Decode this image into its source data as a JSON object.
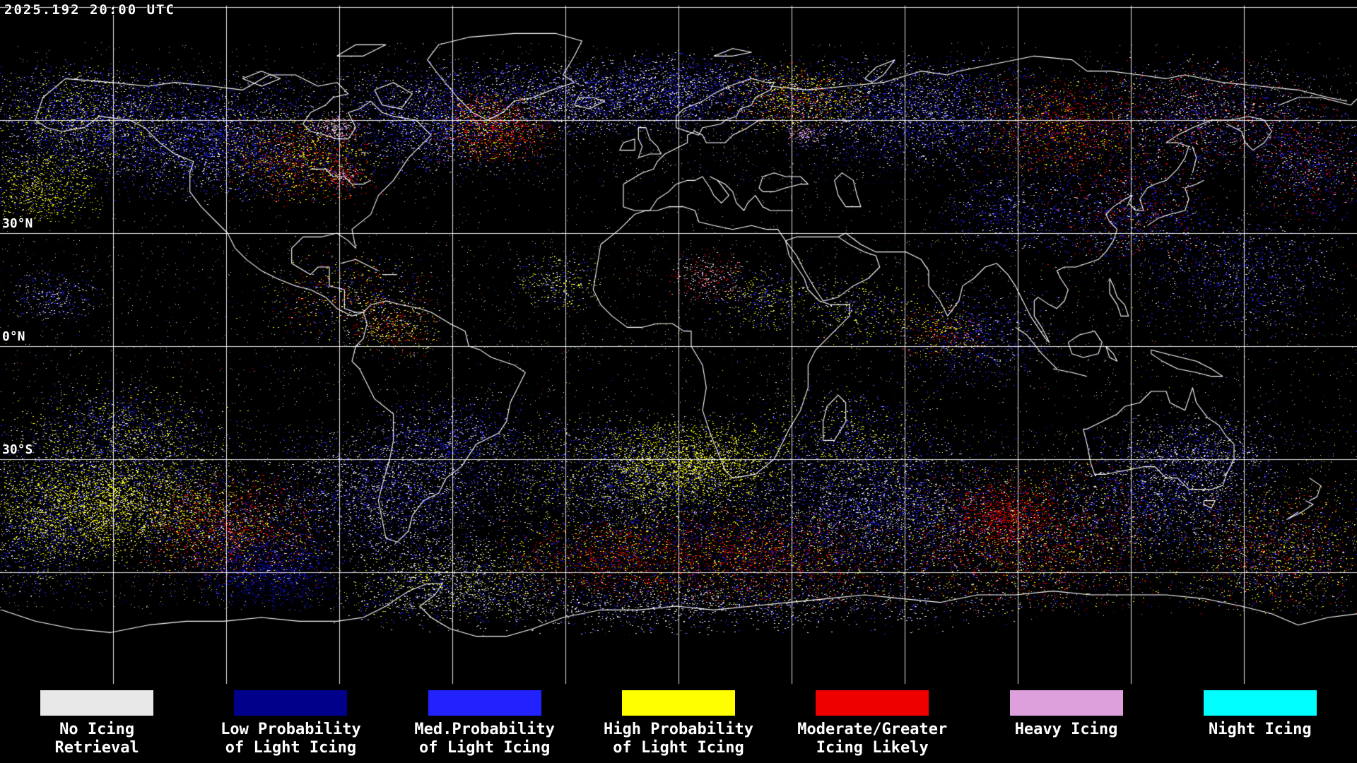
{
  "header": {
    "timestamp": "2025.192 20:00 UTC"
  },
  "map": {
    "lat_labels": [
      "30°N",
      "0°N",
      "30°S"
    ],
    "background_color": "#000000",
    "coastline_color": "#ffffff",
    "grid_color": "#ffffff"
  },
  "legend": {
    "items": [
      {
        "line1": "No Icing",
        "line2": "Retrieval",
        "color": "#e8e8e8"
      },
      {
        "line1": "Low Probability",
        "line2": "of Light Icing",
        "color": "#00008b"
      },
      {
        "line1": "Med.Probability",
        "line2": "of Light Icing",
        "color": "#2222ff"
      },
      {
        "line1": "High Probability",
        "line2": "of Light Icing",
        "color": "#ffff00"
      },
      {
        "line1": "Moderate/Greater",
        "line2": "Icing Likely",
        "color": "#ee0000"
      },
      {
        "line1": "Heavy Icing",
        "line2": "",
        "color": "#dda0dd"
      },
      {
        "line1": "Night Icing",
        "line2": "",
        "color": "#00ffff"
      }
    ]
  }
}
